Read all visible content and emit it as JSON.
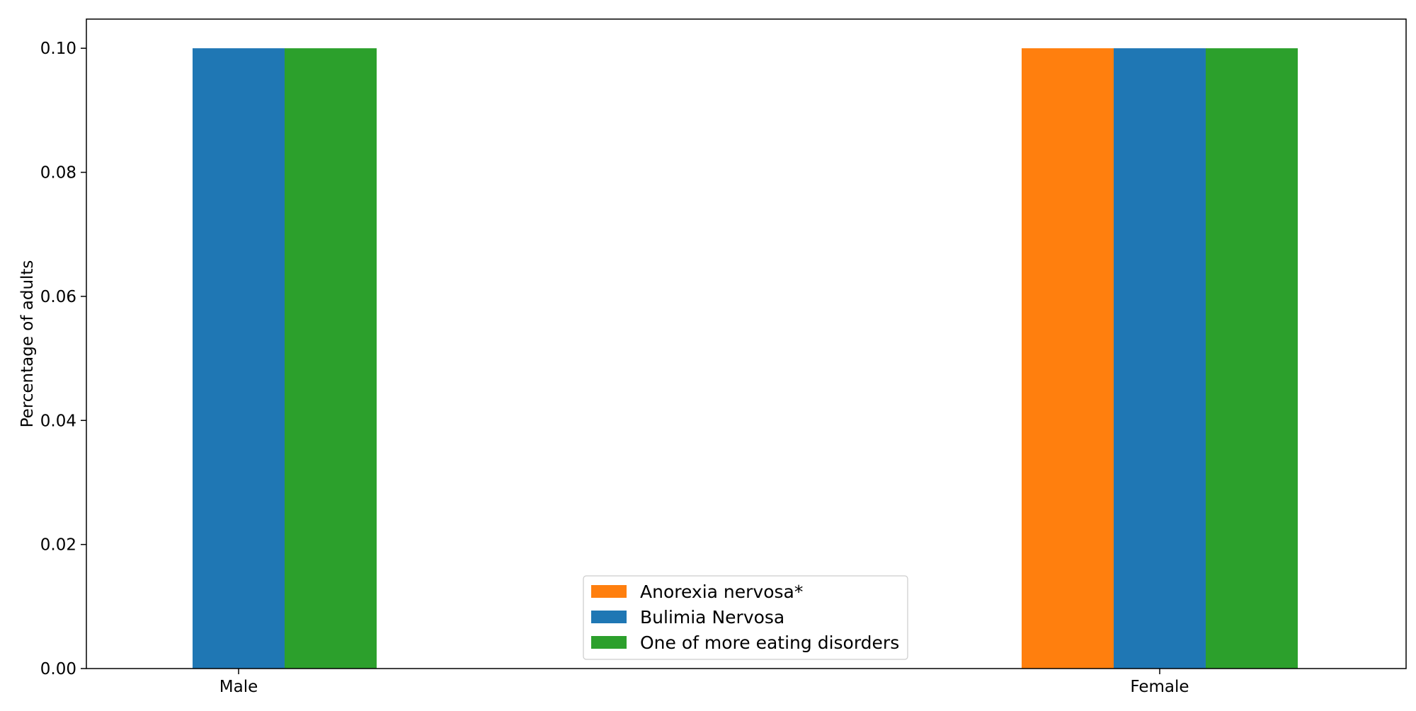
{
  "chart_data": {
    "type": "bar",
    "title": "",
    "xlabel": "",
    "ylabel": "Percentage of adults",
    "categories": [
      "Male",
      "Female"
    ],
    "series": [
      {
        "name": "Anorexia nervosa*",
        "color": "#ff7f0e",
        "values": [
          0.0,
          0.1
        ]
      },
      {
        "name": "Bulimia Nervosa",
        "color": "#1f77b4",
        "values": [
          0.1,
          0.1
        ]
      },
      {
        "name": "One of more eating disorders",
        "color": "#2ca02c",
        "values": [
          0.1,
          0.1
        ]
      }
    ],
    "ylim": [
      0,
      0.1047
    ],
    "yticks": [
      "0.00",
      "0.02",
      "0.04",
      "0.06",
      "0.08",
      "0.10"
    ],
    "grid": false,
    "legend_position": "lower center"
  }
}
